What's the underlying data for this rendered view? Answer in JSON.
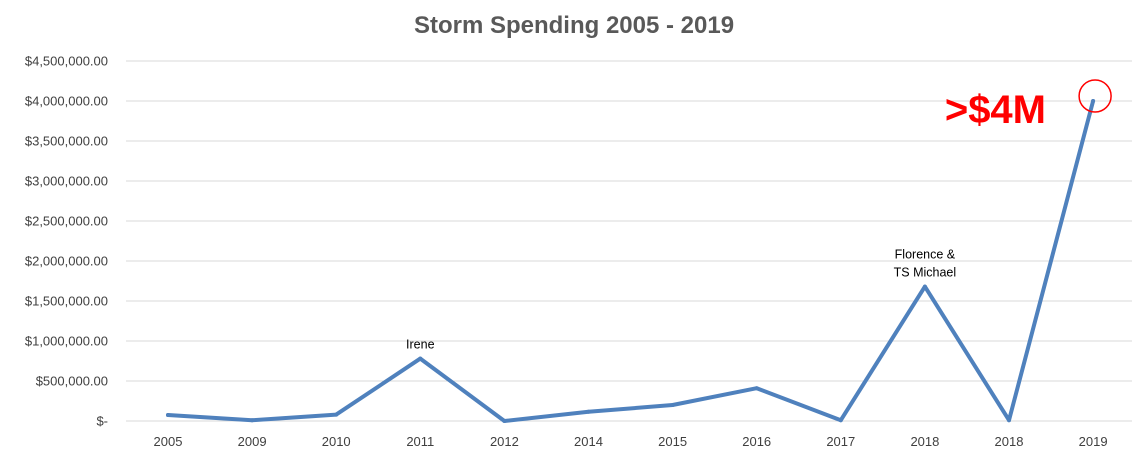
{
  "chart_data": {
    "type": "line",
    "title": "Storm Spending 2005 - 2019",
    "xlabel": "",
    "ylabel": "",
    "categories": [
      "2005",
      "2009",
      "2010",
      "2011",
      "2012",
      "2014",
      "2015",
      "2016",
      "2017",
      "2018",
      "2018",
      "2019"
    ],
    "series": [
      {
        "values": [
          75000,
          10000,
          80000,
          780000,
          0,
          115000,
          200000,
          410000,
          10000,
          1680000,
          10000,
          4000000
        ],
        "color": "#4f81bd"
      }
    ],
    "ylim": [
      0,
      4500000
    ],
    "yticks": [
      {
        "value": 4500000,
        "label": "$4,500,000.00"
      },
      {
        "value": 4000000,
        "label": "$4,000,000.00"
      },
      {
        "value": 3500000,
        "label": "$3,500,000.00"
      },
      {
        "value": 3000000,
        "label": "$3,000,000.00"
      },
      {
        "value": 2500000,
        "label": "$2,500,000.00"
      },
      {
        "value": 2000000,
        "label": "$2,000,000.00"
      },
      {
        "value": 1500000,
        "label": "$1,500,000.00"
      },
      {
        "value": 1000000,
        "label": "$1,000,000.00"
      },
      {
        "value": 500000,
        "label": "$500,000.00"
      },
      {
        "value": 0,
        "label": "$-"
      }
    ],
    "grid": true,
    "legend": "none",
    "annotations": [
      {
        "index": 3,
        "lines": [
          "Irene"
        ]
      },
      {
        "index": 9,
        "lines": [
          "Florence &",
          "TS Michael"
        ]
      }
    ],
    "callout": {
      "text": ">$4M",
      "index": 11,
      "color": "#ff0000",
      "marker": "circle"
    }
  }
}
